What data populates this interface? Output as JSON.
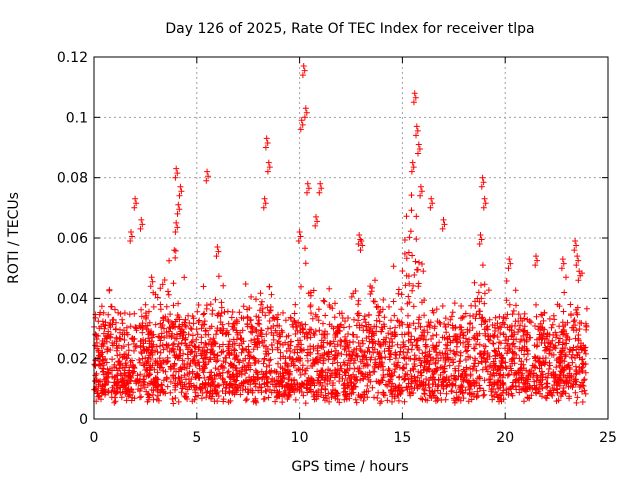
{
  "chart_data": {
    "type": "scatter",
    "title": "Day 126 of 2025, Rate Of TEC Index for receiver tlpa",
    "xlabel": "GPS time / hours",
    "ylabel": "ROTI / TECUs",
    "xlim": [
      0,
      25
    ],
    "ylim": [
      0,
      0.12
    ],
    "xticks": [
      "0",
      "5",
      "10",
      "15",
      "20",
      "25"
    ],
    "yticks": [
      "0",
      "0.02",
      "0.04",
      "0.06",
      "0.08",
      "0.1",
      "0.12"
    ],
    "grid": true,
    "marker": "+",
    "color": "#ff0000",
    "series": [
      {
        "name": "ROTI",
        "x_range": [
          0,
          24
        ],
        "baseline_band": [
          0.005,
          0.03
        ],
        "points": [
          [
            1.8,
            0.062
          ],
          [
            2.0,
            0.073
          ],
          [
            2.3,
            0.066
          ],
          [
            2.8,
            0.047
          ],
          [
            4.0,
            0.083
          ],
          [
            4.1,
            0.071
          ],
          [
            4.2,
            0.077
          ],
          [
            4.0,
            0.065
          ],
          [
            5.5,
            0.082
          ],
          [
            6.0,
            0.057
          ],
          [
            8.4,
            0.093
          ],
          [
            8.5,
            0.085
          ],
          [
            8.3,
            0.073
          ],
          [
            10.2,
            0.117
          ],
          [
            10.3,
            0.103
          ],
          [
            10.1,
            0.099
          ],
          [
            10.4,
            0.078
          ],
          [
            10.0,
            0.062
          ],
          [
            10.8,
            0.067
          ],
          [
            11.0,
            0.078
          ],
          [
            12.9,
            0.061
          ],
          [
            13.0,
            0.059
          ],
          [
            15.6,
            0.108
          ],
          [
            15.7,
            0.097
          ],
          [
            15.8,
            0.091
          ],
          [
            15.5,
            0.085
          ],
          [
            15.9,
            0.077
          ],
          [
            16.4,
            0.073
          ],
          [
            17.0,
            0.066
          ],
          [
            18.9,
            0.08
          ],
          [
            19.0,
            0.073
          ],
          [
            18.8,
            0.061
          ],
          [
            20.2,
            0.053
          ],
          [
            21.5,
            0.054
          ],
          [
            22.8,
            0.053
          ],
          [
            23.4,
            0.059
          ],
          [
            23.5,
            0.054
          ],
          [
            23.6,
            0.049
          ]
        ]
      }
    ]
  }
}
